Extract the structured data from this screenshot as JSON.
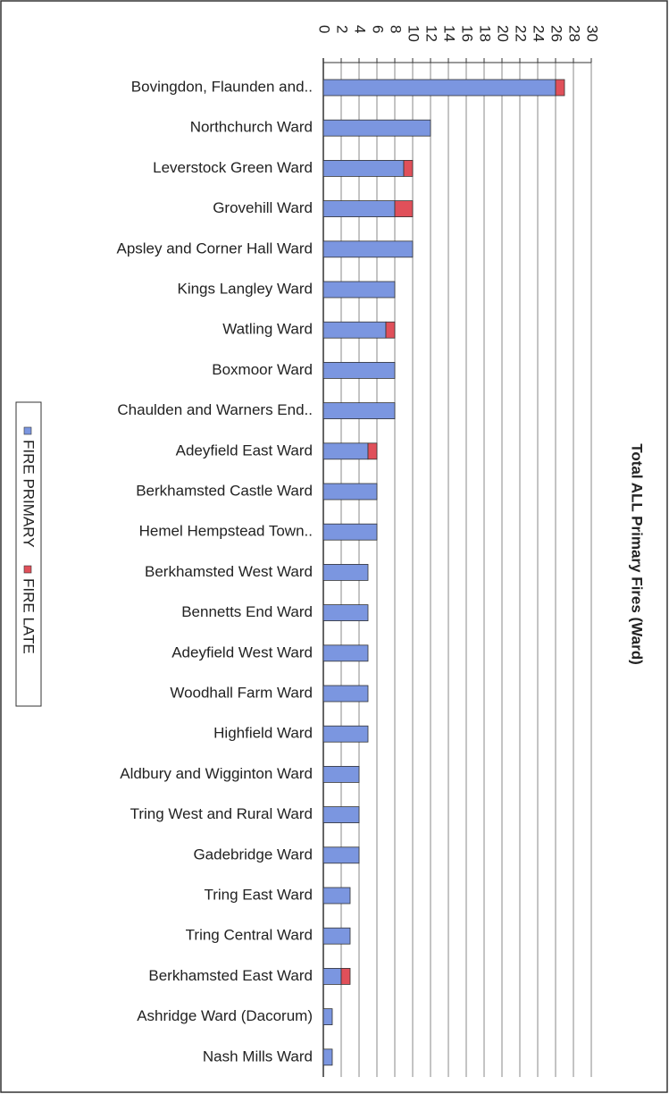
{
  "chart_data": {
    "type": "bar",
    "orientation": "horizontal",
    "stacked": true,
    "title": "Total ALL Primary Fires (Ward)",
    "categories": [
      "Bovingdon, Flaunden and..",
      "Northchurch Ward",
      "Leverstock Green Ward",
      "Grovehill Ward",
      "Apsley and Corner Hall Ward",
      "Kings Langley Ward",
      "Watling Ward",
      "Boxmoor Ward",
      "Chaulden and Warners End..",
      "Adeyfield East Ward",
      "Berkhamsted Castle Ward",
      "Hemel Hempstead Town..",
      "Berkhamsted West Ward",
      "Bennetts End Ward",
      "Adeyfield West Ward",
      "Woodhall Farm Ward",
      "Highfield Ward",
      "Aldbury and Wigginton Ward",
      "Tring West and Rural Ward",
      "Gadebridge Ward",
      "Tring East Ward",
      "Tring Central Ward",
      "Berkhamsted East Ward",
      "Ashridge Ward (Dacorum)",
      "Nash Mills Ward"
    ],
    "series": [
      {
        "name": "FIRE PRIMARY",
        "color": "#7b96e0",
        "values": [
          26,
          12,
          9,
          8,
          10,
          8,
          7,
          8,
          8,
          5,
          6,
          6,
          5,
          5,
          5,
          5,
          5,
          4,
          4,
          4,
          3,
          3,
          2,
          1,
          1
        ]
      },
      {
        "name": "FIRE LATE",
        "color": "#e0505a",
        "values": [
          1,
          0,
          1,
          2,
          0,
          0,
          1,
          0,
          0,
          1,
          0,
          0,
          0,
          0,
          0,
          0,
          0,
          0,
          0,
          0,
          0,
          0,
          1,
          0,
          0
        ]
      }
    ],
    "xlim": [
      0,
      30
    ],
    "xticks": [
      0,
      2,
      4,
      6,
      8,
      10,
      12,
      14,
      16,
      18,
      20,
      22,
      24,
      26,
      28,
      30
    ],
    "grid": true,
    "legend": "left"
  }
}
